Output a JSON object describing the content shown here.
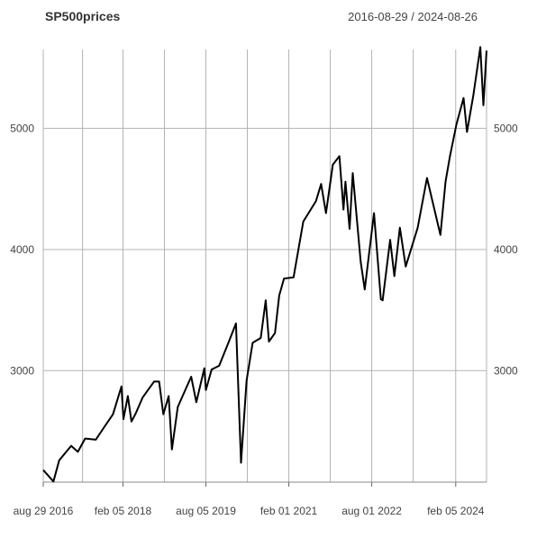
{
  "chart_title": "SP500prices",
  "date_range": "2016-08-29 / 2024-08-26",
  "chart_data": {
    "type": "line",
    "title": "SP500prices",
    "subtitle": "2016-08-29 / 2024-08-26",
    "xlabel": "",
    "ylabel": "",
    "xlim": [
      "2016-08-29",
      "2024-08-26"
    ],
    "ylim": [
      2080,
      5650
    ],
    "grid": true,
    "legend": "none",
    "line_color": "#000000",
    "grid_color": "#b3b3b3",
    "x_ticks": [
      {
        "date": "2016-08-29",
        "label": "aug 29 2016"
      },
      {
        "date": "2018-02-05",
        "label": "feb 05 2018"
      },
      {
        "date": "2019-08-05",
        "label": "aug 05 2019"
      },
      {
        "date": "2021-02-01",
        "label": "feb 01 2021"
      },
      {
        "date": "2022-08-01",
        "label": "aug 01 2022"
      },
      {
        "date": "2024-02-05",
        "label": "feb 05 2024"
      }
    ],
    "x_minor_gridlines": [
      "2017-05-15",
      "2018-11-05",
      "2020-05-04",
      "2021-11-01",
      "2023-05-01",
      "2024-08-26"
    ],
    "y_ticks": [
      3000,
      4000,
      5000
    ],
    "series": [
      {
        "x": [
          "2016-08-29",
          "2016-11-04",
          "2016-12-12",
          "2017-03-01",
          "2017-04-14",
          "2017-06-01",
          "2017-08-10",
          "2017-10-02",
          "2017-12-01",
          "2018-01-26",
          "2018-02-08",
          "2018-03-09",
          "2018-04-02",
          "2018-05-01",
          "2018-06-15",
          "2018-08-29",
          "2018-10-01",
          "2018-10-29",
          "2018-12-03",
          "2018-12-24",
          "2019-02-01",
          "2019-04-30",
          "2019-06-03",
          "2019-07-26",
          "2019-08-05",
          "2019-09-12",
          "2019-10-31",
          "2019-12-31",
          "2020-02-19",
          "2020-03-23",
          "2020-04-29",
          "2020-06-08",
          "2020-07-31",
          "2020-09-02",
          "2020-09-23",
          "2020-11-02",
          "2020-11-30",
          "2020-12-31",
          "2021-03-04",
          "2021-05-07",
          "2021-07-30",
          "2021-09-02",
          "2021-10-04",
          "2021-11-18",
          "2021-12-31",
          "2022-01-27",
          "2022-02-09",
          "2022-03-08",
          "2022-03-29",
          "2022-05-20",
          "2022-06-16",
          "2022-08-16",
          "2022-09-30",
          "2022-10-12",
          "2022-11-30",
          "2022-12-28",
          "2023-02-02",
          "2023-03-13",
          "2023-05-31",
          "2023-07-31",
          "2023-10-27",
          "2023-11-30",
          "2023-12-29",
          "2024-02-09",
          "2024-03-28",
          "2024-04-19",
          "2024-05-31",
          "2024-07-16",
          "2024-08-05",
          "2024-08-26"
        ],
        "values": [
          2180,
          2085,
          2260,
          2380,
          2330,
          2440,
          2430,
          2530,
          2640,
          2870,
          2600,
          2790,
          2580,
          2650,
          2780,
          2910,
          2910,
          2640,
          2790,
          2350,
          2700,
          2950,
          2740,
          3020,
          2840,
          3010,
          3040,
          3230,
          3390,
          2240,
          2920,
          3230,
          3270,
          3580,
          3240,
          3310,
          3620,
          3760,
          3770,
          4230,
          4400,
          4540,
          4300,
          4700,
          4770,
          4330,
          4560,
          4170,
          4630,
          3900,
          3670,
          4300,
          3590,
          3580,
          4080,
          3780,
          4180,
          3860,
          4180,
          4590,
          4120,
          4560,
          4770,
          5030,
          5250,
          4970,
          5270,
          5670,
          5190,
          5640
        ]
      }
    ]
  }
}
